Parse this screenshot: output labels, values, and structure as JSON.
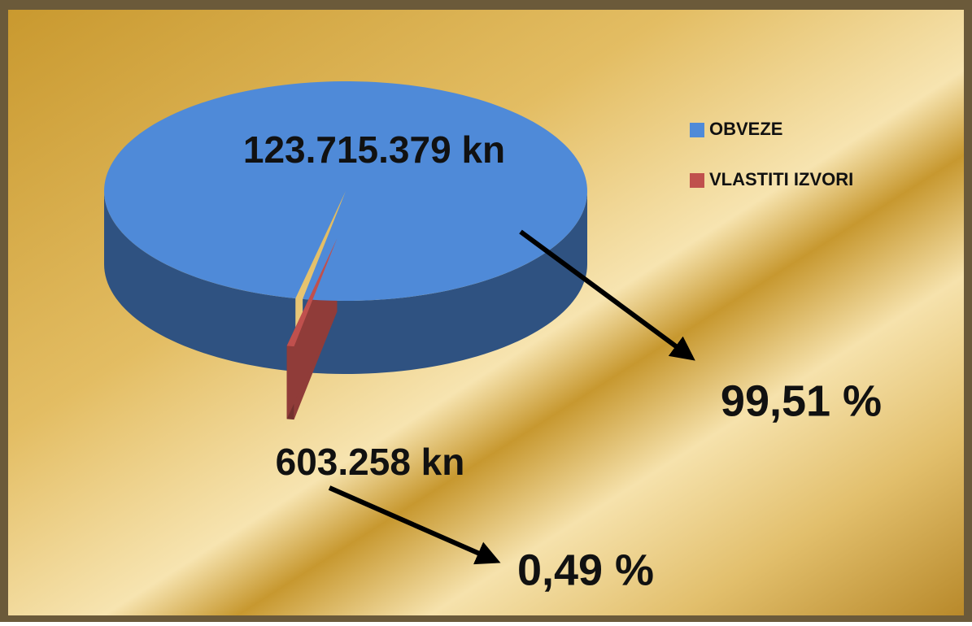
{
  "chart_data": {
    "type": "pie",
    "categories": [
      "OBVEZE",
      "VLASTITI IZVORI"
    ],
    "values": [
      123715379,
      603258
    ],
    "value_labels": [
      "123.715.379 kn",
      "603.258 kn"
    ],
    "percentages": [
      99.51,
      0.49
    ],
    "percentage_labels": [
      "99,51 %",
      "0,49 %"
    ],
    "colors": [
      "#4f8ad8",
      "#c0504d"
    ],
    "legend": "right"
  }
}
